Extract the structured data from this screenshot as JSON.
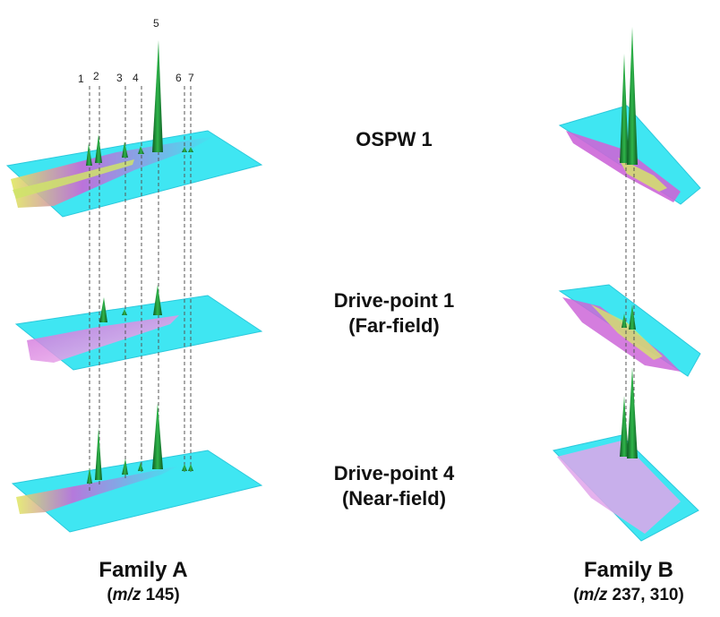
{
  "samples": {
    "ospw": {
      "line1": "OSPW 1",
      "line2": ""
    },
    "dp1": {
      "line1": "Drive-point 1",
      "line2": "(Far-field)"
    },
    "dp4": {
      "line1": "Drive-point 4",
      "line2": "(Near-field)"
    }
  },
  "families": {
    "a": {
      "title": "Family A",
      "mz_prefix": "(",
      "mz_italic": "m/z",
      "mz_values": " 145)"
    },
    "b": {
      "title": "Family B",
      "mz_prefix": "(",
      "mz_italic": "m/z",
      "mz_values": " 237, 310)"
    }
  },
  "peak_labels": [
    "1",
    "2",
    "3",
    "4",
    "5",
    "6",
    "7"
  ],
  "colors": {
    "plane": "#3fe6f2",
    "plane_edge": "#2bc9dc",
    "smear_magenta": "#d86fe0",
    "smear_yellow": "#d8e860",
    "peak_green": "#1f9a3a",
    "peak_dark": "#0d5a22",
    "guide_line": "#555555"
  }
}
